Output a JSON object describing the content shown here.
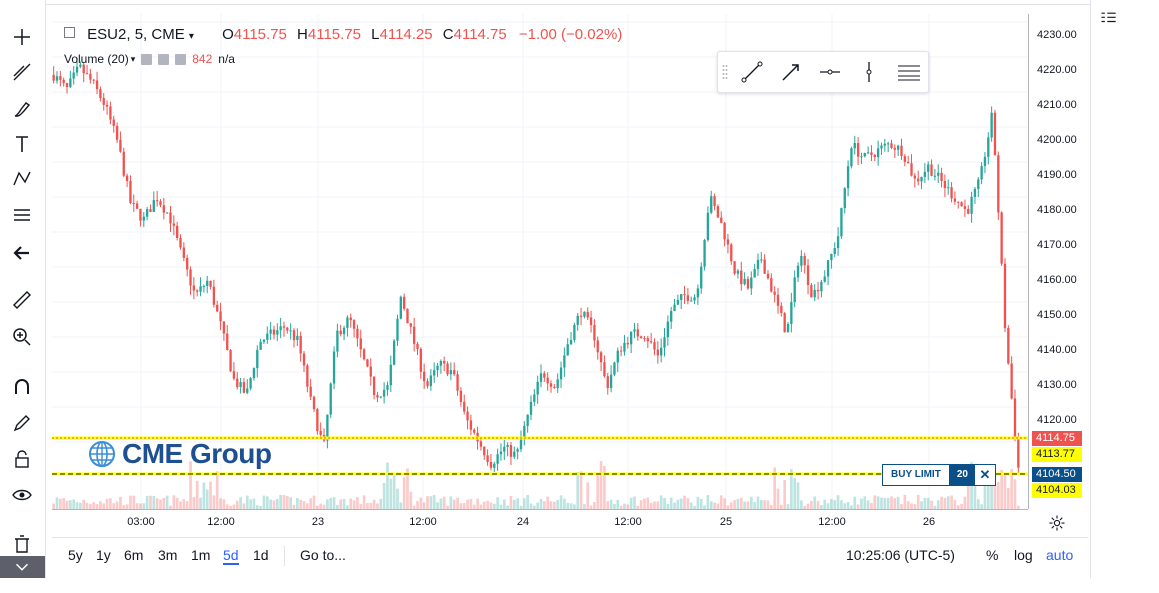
{
  "legend": {
    "symbol": "ESU2, 5, CME",
    "open_label": "O",
    "open": "4115.75",
    "high_label": "H",
    "high": "4115.75",
    "low_label": "L",
    "low": "4114.25",
    "close_label": "C",
    "close": "4114.75",
    "change": "−1.00 (−0.02%)"
  },
  "volume_legend": {
    "label": "Volume (20)",
    "value": "842",
    "extra": "n/a"
  },
  "price_axis": {
    "ticks": [
      "4230.00",
      "4220.00",
      "4210.00",
      "4200.00",
      "4190.00",
      "4180.00",
      "4170.00",
      "4160.00",
      "4150.00",
      "4140.00",
      "4130.00",
      "4120.00"
    ],
    "labels": [
      {
        "value": "4114.75",
        "bg": "#ef5350",
        "fg": "#ffffff"
      },
      {
        "value": "4113.77",
        "bg": "#ffff00",
        "fg": "#131722"
      },
      {
        "value": "4104.50",
        "bg": "#0b4f89",
        "fg": "#ffffff"
      },
      {
        "value": "4104.03",
        "bg": "#ffff00",
        "fg": "#131722"
      }
    ]
  },
  "time_axis": {
    "ticks": [
      "03:00",
      "12:00",
      "23",
      "12:00",
      "24",
      "12:00",
      "25",
      "12:00",
      "26"
    ]
  },
  "order": {
    "label": "BUY LIMIT",
    "qty": "20",
    "close_icon": "close-icon"
  },
  "logo": {
    "text": "CME Group"
  },
  "bottom_bar": {
    "ranges": [
      "5y",
      "1y",
      "6m",
      "3m",
      "1m",
      "5d",
      "1d"
    ],
    "active_range": "5d",
    "goto": "Go to...",
    "clock": "10:25:06 (UTC-5)",
    "percent": "%",
    "log": "log",
    "auto": "auto"
  },
  "colors": {
    "up": "#26a69a",
    "down": "#ef5350",
    "accent": "#2962ff",
    "order": "#0b4f89",
    "alert": "#ffff00"
  },
  "chart_data": {
    "type": "line",
    "series": [
      {
        "values": [
          4218,
          4214,
          4220,
          4216,
          4210,
          4200,
          4184,
          4180,
          4186,
          4181,
          4170,
          4160,
          4164,
          4152,
          4138,
          4134,
          4148,
          4150,
          4152,
          4148,
          4132,
          4120,
          4150,
          4154,
          4144,
          4134,
          4136,
          4160,
          4148,
          4136,
          4142,
          4140,
          4128,
          4122,
          4116,
          4120,
          4118,
          4130,
          4140,
          4136,
          4148,
          4156,
          4150,
          4136,
          4146,
          4150,
          4150,
          4144,
          4156,
          4160,
          4160,
          4186,
          4178,
          4166,
          4162,
          4170,
          4160,
          4150,
          4172,
          4160,
          4166,
          4176,
          4200,
          4196,
          4198,
          4200,
          4198,
          4190,
          4194,
          4190,
          4186,
          4182,
          4190,
          4208,
          4150,
          4114.75
        ]
      }
    ],
    "ylim": [
      4104,
      4234
    ]
  },
  "toolbar_icons": [
    "crosshair-icon",
    "trendline-icon",
    "fib-icon",
    "brush-icon",
    "text-icon",
    "pattern-icon",
    "prediction-icon",
    "back-arrow-icon",
    "ruler-icon",
    "zoom-icon",
    "magnet-icon",
    "lock-pencil-icon",
    "lock-icon",
    "eye-icon",
    "trash-icon"
  ]
}
